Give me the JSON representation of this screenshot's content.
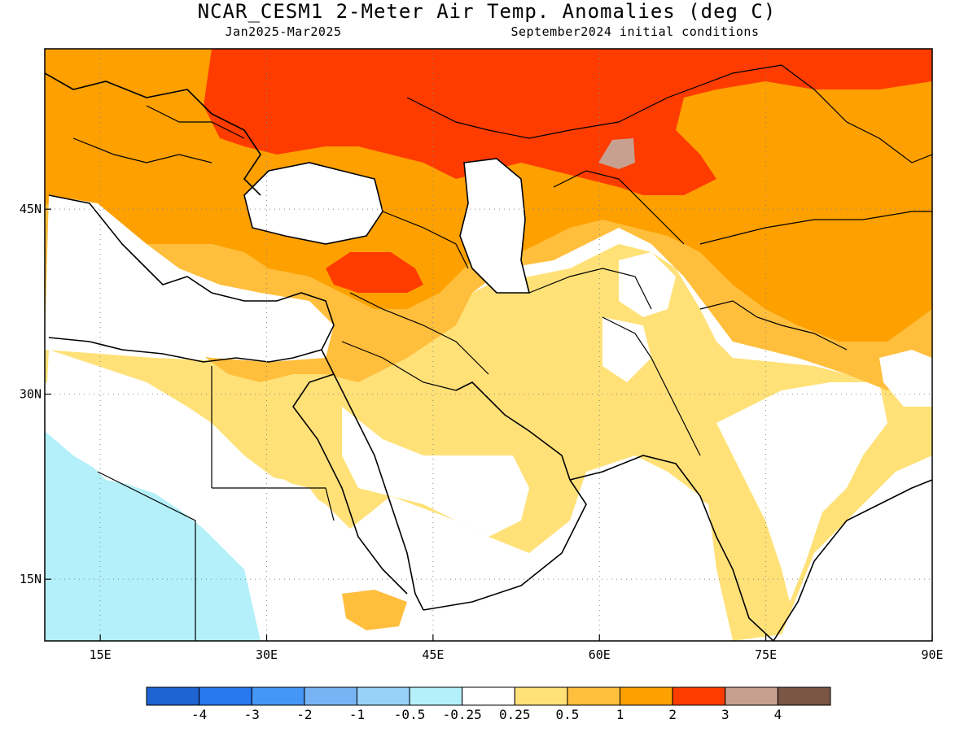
{
  "title": "NCAR_CESM1 2-Meter Air Temp. Anomalies (deg C)",
  "period": "Jan2025-Mar2025",
  "init": "September2024 initial conditions",
  "map": {
    "lon_range": [
      10,
      90
    ],
    "lat_range": [
      10,
      58
    ],
    "grid_dotted": true,
    "x_ticks": [
      {
        "value": 15,
        "label": "15E"
      },
      {
        "value": 30,
        "label": "30E"
      },
      {
        "value": 45,
        "label": "45E"
      },
      {
        "value": 60,
        "label": "60E"
      },
      {
        "value": 75,
        "label": "75E"
      },
      {
        "value": 90,
        "label": "90E"
      }
    ],
    "y_ticks": [
      {
        "value": 15,
        "label": "15N"
      },
      {
        "value": 30,
        "label": "30N"
      },
      {
        "value": 45,
        "label": "45N"
      }
    ]
  },
  "colorbar": {
    "colors": [
      "#1e64d2",
      "#2878f0",
      "#4696f5",
      "#78b4f5",
      "#96d2fa",
      "#b4f0fa",
      "#ffffff",
      "#ffe178",
      "#ffbe3c",
      "#fda000",
      "#ff3c00",
      "#c8a090",
      "#7a5646"
    ],
    "labels": [
      "-4",
      "-3",
      "-2",
      "-1",
      "-0.5",
      "-0.25",
      "0.25",
      "0.5",
      "1",
      "2",
      "3",
      "4"
    ]
  }
}
